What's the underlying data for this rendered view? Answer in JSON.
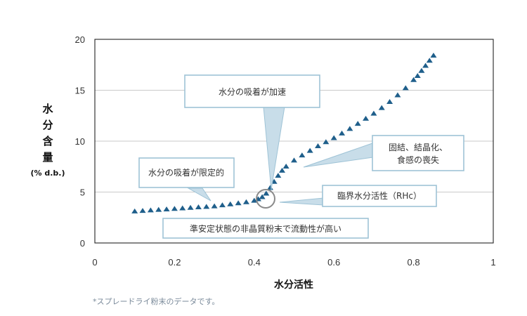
{
  "chart_data": {
    "type": "scatter",
    "xlabel": "水分活性",
    "ylabel": [
      "水",
      "分",
      "含",
      "量"
    ],
    "yunit": "(% d.b.)",
    "xlim": [
      0,
      1
    ],
    "ylim": [
      0,
      20
    ],
    "xticks": [
      "0",
      "0.2",
      "0.4",
      "0.6",
      "0.8",
      "1"
    ],
    "yticks": [
      "0",
      "5",
      "10",
      "15",
      "20"
    ],
    "grid": "horizontal",
    "color": "#1f5f8b",
    "marker": "triangle",
    "series": [
      {
        "x": [
          0.1,
          0.12,
          0.14,
          0.16,
          0.18,
          0.2,
          0.22,
          0.24,
          0.26,
          0.28,
          0.3,
          0.32,
          0.34,
          0.36,
          0.38,
          0.4,
          0.41,
          0.42,
          0.43,
          0.44,
          0.45,
          0.46,
          0.47,
          0.48,
          0.5,
          0.52,
          0.54,
          0.56,
          0.58,
          0.6,
          0.62,
          0.64,
          0.66,
          0.68,
          0.7,
          0.72,
          0.74,
          0.76,
          0.78,
          0.8,
          0.81,
          0.82,
          0.83,
          0.84,
          0.85
        ],
        "y": [
          3.1,
          3.15,
          3.2,
          3.25,
          3.3,
          3.35,
          3.4,
          3.45,
          3.5,
          3.55,
          3.6,
          3.7,
          3.8,
          3.9,
          4.0,
          4.15,
          4.3,
          4.5,
          4.85,
          5.4,
          6.0,
          6.6,
          7.1,
          7.5,
          8.1,
          8.6,
          9.05,
          9.5,
          9.9,
          10.3,
          10.75,
          11.2,
          11.7,
          12.2,
          12.7,
          13.25,
          13.85,
          14.5,
          15.2,
          16.0,
          16.4,
          16.9,
          17.4,
          17.9,
          18.4
        ]
      }
    ],
    "annotations": [
      {
        "lines": [
          "水分の吸着が加速"
        ]
      },
      {
        "lines": [
          "固結、結晶化、",
          "食感の喪失"
        ]
      },
      {
        "lines": [
          "水分の吸着が限定的"
        ]
      },
      {
        "lines": [
          "臨界水分活性（RHc）"
        ]
      },
      {
        "lines": [
          "準安定状態の非晶質粉末で流動性が高い"
        ]
      }
    ],
    "footnote": "*スプレードライ粉末のデータです。"
  }
}
